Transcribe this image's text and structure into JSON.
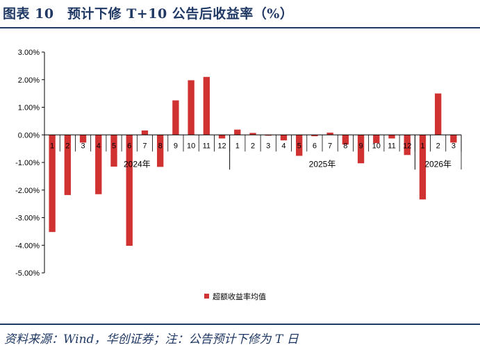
{
  "figure": {
    "title": "图表 10　预计下修 T+10 公告后收益率（%）",
    "source": "资料来源：Wind，华创证券；注：公告预计下修为 T 日"
  },
  "colors": {
    "bar": "#d03131",
    "accent": "#1f3864"
  },
  "chart_data": {
    "type": "bar",
    "title": "",
    "xlabel": "",
    "ylabel": "",
    "ylim": [
      -5,
      3
    ],
    "yticks": [
      "3.00%",
      "2.00%",
      "1.00%",
      "0.00%",
      "-1.00%",
      "-2.00%",
      "-3.00%",
      "-4.00%",
      "-5.00%"
    ],
    "ytick_values": [
      3,
      2,
      1,
      0,
      -1,
      -2,
      -3,
      -4,
      -5
    ],
    "categories": [
      "1",
      "2",
      "3",
      "4",
      "5",
      "6",
      "7",
      "8",
      "9",
      "10",
      "11",
      "12",
      "1",
      "2",
      "3",
      "4",
      "5",
      "6",
      "7",
      "8",
      "9",
      "10",
      "11",
      "12",
      "1",
      "2",
      "3"
    ],
    "groups": [
      {
        "label": "2024年",
        "start": 0,
        "end": 11
      },
      {
        "label": "2025年",
        "start": 12,
        "end": 23
      },
      {
        "label": "2026年",
        "start": 24,
        "end": 26
      }
    ],
    "series": [
      {
        "name": "超额收益率均值",
        "values": [
          -3.52,
          -2.18,
          -0.28,
          -2.15,
          -1.15,
          -4.02,
          0.16,
          -1.16,
          1.25,
          1.98,
          2.1,
          -0.13,
          0.19,
          0.07,
          -0.03,
          -0.2,
          -0.76,
          -0.05,
          0.08,
          -0.35,
          -1.03,
          -0.3,
          -0.13,
          -0.73,
          -2.34,
          1.5,
          -0.28
        ]
      }
    ],
    "legend_position": "bottom-center",
    "grid": false
  }
}
